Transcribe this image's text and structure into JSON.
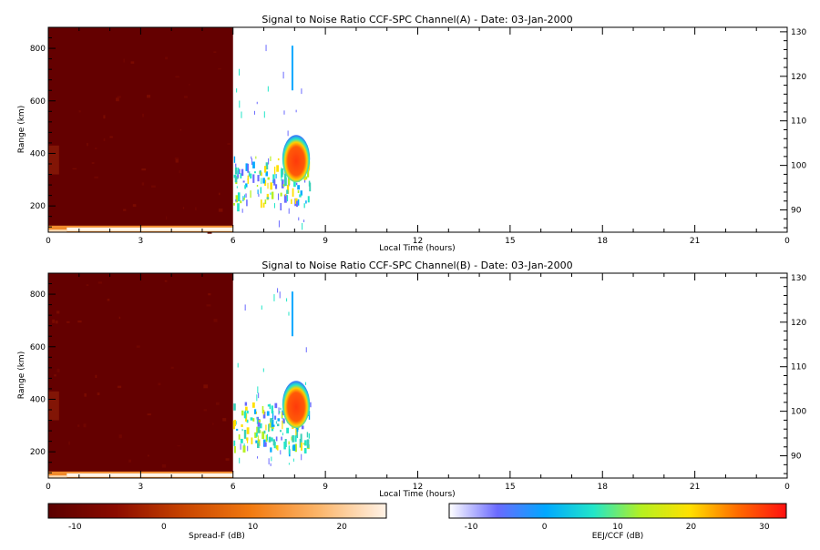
{
  "chart_data": [
    {
      "type": "heatmap",
      "title": "Signal to Noise Ratio CCF-SPC Channel(A) - Date: 03-Jan-2000",
      "xlabel": "Local Time (hours)",
      "ylabel": "Range (km)",
      "xlim": [
        0,
        24
      ],
      "ylim": [
        100,
        880
      ],
      "xticks": [
        "0",
        "3",
        "6",
        "9",
        "12",
        "15",
        "18",
        "21",
        "0"
      ],
      "yticks": [
        "200",
        "400",
        "600",
        "800"
      ],
      "right_axis": {
        "ticks": [
          "90",
          "100",
          "110",
          "120",
          "130"
        ],
        "ylim": [
          85,
          131
        ]
      },
      "regions": [
        {
          "name": "Spread-F background",
          "x": [
            0,
            6
          ],
          "y": [
            100,
            880
          ],
          "value_db": -12
        },
        {
          "name": "Low-range bright band",
          "x": [
            0,
            6
          ],
          "y": [
            100,
            120
          ],
          "value_db": 20
        },
        {
          "name": "EEJ/CCF echo patch",
          "x": [
            7.6,
            8.5
          ],
          "y": [
            290,
            470
          ],
          "value_db": 28
        }
      ]
    },
    {
      "type": "heatmap",
      "title": "Signal to Noise Ratio CCF-SPC Channel(B) - Date: 03-Jan-2000",
      "xlabel": "Local Time (hours)",
      "ylabel": "Range (km)",
      "xlim": [
        0,
        24
      ],
      "ylim": [
        100,
        880
      ],
      "xticks": [
        "0",
        "3",
        "6",
        "9",
        "12",
        "15",
        "18",
        "21",
        "0"
      ],
      "yticks": [
        "200",
        "400",
        "600",
        "800"
      ],
      "right_axis": {
        "ticks": [
          "90",
          "100",
          "110",
          "120",
          "130"
        ],
        "ylim": [
          85,
          131
        ]
      },
      "regions": [
        {
          "name": "Spread-F background",
          "x": [
            0,
            6
          ],
          "y": [
            100,
            880
          ],
          "value_db": -12
        },
        {
          "name": "Low-range bright band",
          "x": [
            0,
            6
          ],
          "y": [
            100,
            120
          ],
          "value_db": 20
        },
        {
          "name": "EEJ/CCF echo patch",
          "x": [
            7.6,
            8.5
          ],
          "y": [
            290,
            470
          ],
          "value_db": 28
        }
      ]
    }
  ],
  "colorbars": [
    {
      "label": "Spread-F (dB)",
      "range": [
        -13,
        25
      ],
      "ticks": [
        "-10",
        "0",
        "10",
        "20"
      ],
      "colors": [
        "#5a0000",
        "#8b0b00",
        "#c84400",
        "#f27a10",
        "#fbb56a",
        "#fff2e6"
      ]
    },
    {
      "label": "EEJ/CCF (dB)",
      "range": [
        -13,
        33
      ],
      "ticks": [
        "-10",
        "0",
        "10",
        "20",
        "30"
      ],
      "colors": [
        "#ffffff",
        "#6a6aff",
        "#00a8ff",
        "#22e6c8",
        "#b6f020",
        "#ffe000",
        "#ff6a00",
        "#ff1010"
      ]
    }
  ],
  "colors": {
    "spread_f_dark": "#640000",
    "echo_core": "#ff3a0a"
  }
}
